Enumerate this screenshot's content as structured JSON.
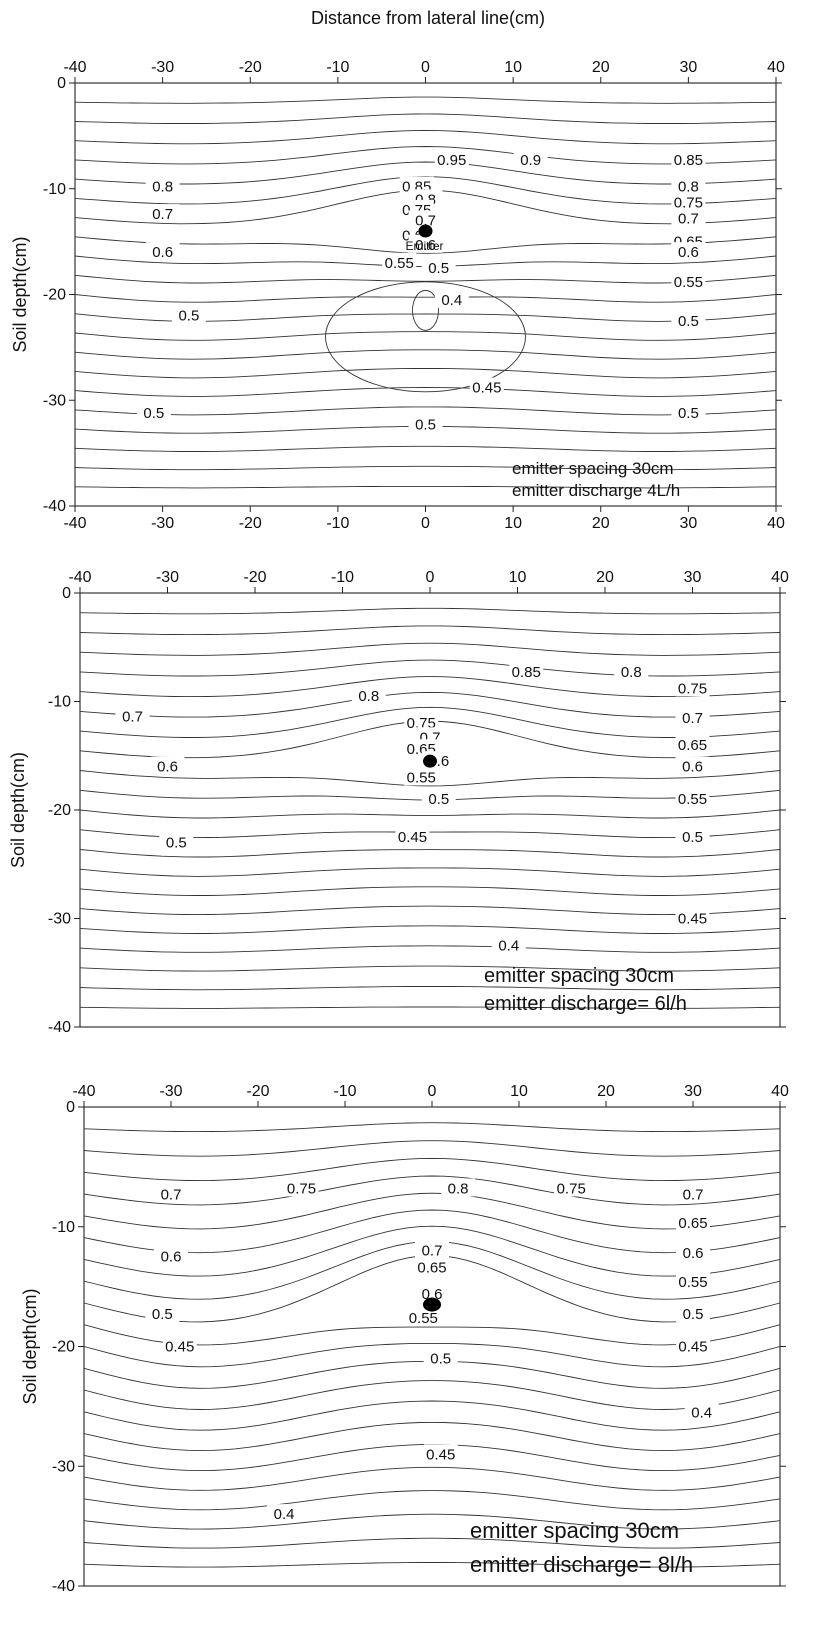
{
  "chart_data": [
    {
      "type": "contour",
      "xlabel": "Distance from lateral line(cm)",
      "ylabel": "Soil depth(cm)",
      "xlim": [
        -40,
        40
      ],
      "ylim": [
        -40,
        0
      ],
      "x_ticks": [
        "-40",
        "-30",
        "-20",
        "-10",
        "0",
        "10",
        "20",
        "30",
        "40"
      ],
      "y_ticks": [
        "0",
        "-10",
        "-20",
        "-30",
        "-40"
      ],
      "emitter": {
        "x": 0,
        "y": -14,
        "label": "Emitter"
      },
      "annotation": [
        "emitter spacing 30cm",
        "emitter discharge 4L/h"
      ],
      "contour_labels": [
        {
          "text": "0.95",
          "x": 3,
          "y": -7.3
        },
        {
          "text": "0.9",
          "x": 12,
          "y": -7.3
        },
        {
          "text": "0.85",
          "x": 30,
          "y": -7.3
        },
        {
          "text": "0.8",
          "x": -30,
          "y": -9.8
        },
        {
          "text": "0.85",
          "x": -1,
          "y": -9.8
        },
        {
          "text": "0.8",
          "x": 0,
          "y": -11.0
        },
        {
          "text": "0.8",
          "x": 30,
          "y": -9.8
        },
        {
          "text": "0.75",
          "x": -1,
          "y": -12.0
        },
        {
          "text": "0.75",
          "x": 30,
          "y": -11.3
        },
        {
          "text": "0.7",
          "x": -30,
          "y": -12.4
        },
        {
          "text": "0.7",
          "x": 0,
          "y": -13.0
        },
        {
          "text": "0.7",
          "x": 30,
          "y": -12.8
        },
        {
          "text": "0.65",
          "x": -1,
          "y": -14.4
        },
        {
          "text": "0.65",
          "x": 30,
          "y": -15.0
        },
        {
          "text": "0.6",
          "x": -30,
          "y": -16.0
        },
        {
          "text": "0.6",
          "x": 0,
          "y": -15.3
        },
        {
          "text": "0.55",
          "x": -3,
          "y": -17.0
        },
        {
          "text": "0.6",
          "x": 30,
          "y": -16.0
        },
        {
          "text": "0.5",
          "x": 1.5,
          "y": -17.5
        },
        {
          "text": "0.55",
          "x": 30,
          "y": -18.8
        },
        {
          "text": "0.5",
          "x": -27,
          "y": -22.0
        },
        {
          "text": "0.4",
          "x": 3,
          "y": -20.5
        },
        {
          "text": "0.5",
          "x": 30,
          "y": -22.5
        },
        {
          "text": "0.45",
          "x": 7,
          "y": -28.8
        },
        {
          "text": "0.5",
          "x": -31,
          "y": -31.2
        },
        {
          "text": "0.5",
          "x": 0,
          "y": -32.3
        },
        {
          "text": "0.5",
          "x": 30,
          "y": -31.2
        }
      ]
    },
    {
      "type": "contour",
      "xlabel": "",
      "ylabel": "Soil depth(cm)",
      "xlim": [
        -40,
        40
      ],
      "ylim": [
        -40,
        0
      ],
      "x_ticks": [
        "-40",
        "-30",
        "-20",
        "-10",
        "0",
        "10",
        "20",
        "30",
        "40"
      ],
      "y_ticks": [
        "0",
        "-10",
        "-20",
        "-30",
        "-40"
      ],
      "emitter": {
        "x": 0,
        "y": -15.5,
        "label": ""
      },
      "annotation": [
        "emitter spacing 30cm",
        "emitter discharge= 6l/h"
      ],
      "contour_labels": [
        {
          "text": "0.85",
          "x": 11,
          "y": -7.3
        },
        {
          "text": "0.8",
          "x": 23,
          "y": -7.3
        },
        {
          "text": "0.75",
          "x": 30,
          "y": -8.8
        },
        {
          "text": "0.8",
          "x": -7,
          "y": -9.5
        },
        {
          "text": "0.7",
          "x": -34,
          "y": -11.4
        },
        {
          "text": "0.75",
          "x": -1,
          "y": -12.0
        },
        {
          "text": "0.7",
          "x": 30,
          "y": -11.5
        },
        {
          "text": "0.7",
          "x": 0,
          "y": -13.3
        },
        {
          "text": "0.65",
          "x": 30,
          "y": -14.0
        },
        {
          "text": "0.65",
          "x": -1,
          "y": -14.4
        },
        {
          "text": "0.6",
          "x": -30,
          "y": -16.0
        },
        {
          "text": "0.6",
          "x": 1,
          "y": -15.5
        },
        {
          "text": "0.6",
          "x": 30,
          "y": -16.0
        },
        {
          "text": "0.55",
          "x": -1,
          "y": -17.0
        },
        {
          "text": "0.5",
          "x": 1,
          "y": -19.0
        },
        {
          "text": "0.55",
          "x": 30,
          "y": -19.0
        },
        {
          "text": "0.45",
          "x": -2,
          "y": -22.5
        },
        {
          "text": "0.5",
          "x": -29,
          "y": -23.0
        },
        {
          "text": "0.5",
          "x": 30,
          "y": -22.5
        },
        {
          "text": "0.4",
          "x": 9,
          "y": -32.5
        },
        {
          "text": "0.45",
          "x": 30,
          "y": -30.0
        }
      ]
    },
    {
      "type": "contour",
      "xlabel": "",
      "ylabel": "Soil depth(cm)",
      "xlim": [
        -40,
        40
      ],
      "ylim": [
        -40,
        0
      ],
      "x_ticks": [
        "-40",
        "-30",
        "-20",
        "-10",
        "0",
        "10",
        "20",
        "30",
        "40"
      ],
      "y_ticks": [
        "0",
        "-10",
        "-20",
        "-30",
        "-40"
      ],
      "emitter": {
        "x": 0,
        "y": -16.5,
        "label": ""
      },
      "annotation": [
        "emitter spacing 30cm",
        "emitter discharge= 8l/h"
      ],
      "contour_labels": [
        {
          "text": "0.75",
          "x": -15,
          "y": -6.8
        },
        {
          "text": "0.8",
          "x": 3,
          "y": -6.8
        },
        {
          "text": "0.75",
          "x": 16,
          "y": -6.8
        },
        {
          "text": "0.7",
          "x": -30,
          "y": -7.3
        },
        {
          "text": "0.7",
          "x": 30,
          "y": -7.3
        },
        {
          "text": "0.7",
          "x": 0,
          "y": -12.0
        },
        {
          "text": "0.65",
          "x": 30,
          "y": -9.7
        },
        {
          "text": "0.6",
          "x": -30,
          "y": -12.5
        },
        {
          "text": "0.65",
          "x": 0,
          "y": -13.4
        },
        {
          "text": "0.6",
          "x": 30,
          "y": -12.2
        },
        {
          "text": "0.55",
          "x": 30,
          "y": -14.6
        },
        {
          "text": "0.6",
          "x": 0,
          "y": -15.6
        },
        {
          "text": "0.5",
          "x": -31,
          "y": -17.3
        },
        {
          "text": "0.55",
          "x": -1,
          "y": -17.6
        },
        {
          "text": "0.5",
          "x": 30,
          "y": -17.3
        },
        {
          "text": "0.45",
          "x": -29,
          "y": -20.0
        },
        {
          "text": "0.45",
          "x": 30,
          "y": -20.0
        },
        {
          "text": "0.5",
          "x": 1,
          "y": -21.0
        },
        {
          "text": "0.4",
          "x": 31,
          "y": -25.5
        },
        {
          "text": "0.45",
          "x": 1,
          "y": -29.0
        },
        {
          "text": "0.4",
          "x": -17,
          "y": -34.0
        }
      ]
    }
  ]
}
